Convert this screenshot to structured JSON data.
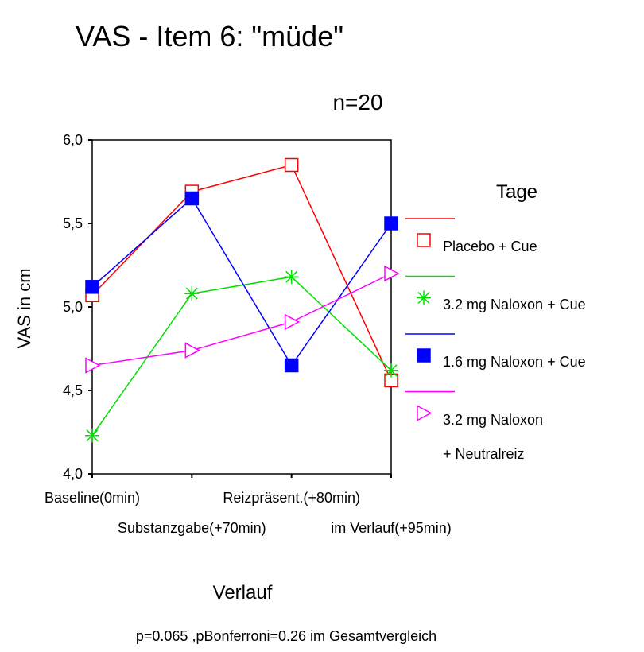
{
  "chart_data": {
    "type": "line",
    "title": "VAS - Item 6: \"müde\"",
    "subtitle": "n=20",
    "ylabel": "VAS in cm",
    "xlabel": "Verlauf",
    "note": "p=0.065 ,pBonferroni=0.26 im Gesamtvergleich",
    "legend_title": "Tage",
    "legend": "right",
    "categories": [
      "Baseline(0min)",
      "Substanzgabe(+70min)",
      "Reizpräsent.(+80min)",
      "im Verlauf(+95min)"
    ],
    "series": [
      {
        "name": "Placebo + Cue",
        "color": "#ff0000",
        "marker": "square-open",
        "values": [
          5.07,
          5.69,
          5.85,
          4.56
        ]
      },
      {
        "name": "3.2 mg Naloxon + Cue",
        "color": "#00e000",
        "marker": "asterisk",
        "values": [
          4.23,
          5.08,
          5.18,
          4.62
        ]
      },
      {
        "name": "1.6 mg Naloxon + Cue",
        "color": "#0000ff",
        "marker": "square-filled",
        "values": [
          5.12,
          5.65,
          4.65,
          5.5
        ]
      },
      {
        "name": "3.2 mg Naloxon\n+ Neutralreiz",
        "color": "#ff00ff",
        "marker": "triangle-right-open",
        "values": [
          4.65,
          4.74,
          4.91,
          5.2
        ]
      }
    ],
    "ylim": [
      4,
      6
    ],
    "yticks": [
      {
        "value": 4,
        "label": "4,0"
      },
      {
        "value": 4.5,
        "label": "4,5"
      },
      {
        "value": 5,
        "label": "5,0"
      },
      {
        "value": 5.5,
        "label": "5,5"
      },
      {
        "value": 6,
        "label": "6,0"
      }
    ],
    "grid": false
  }
}
